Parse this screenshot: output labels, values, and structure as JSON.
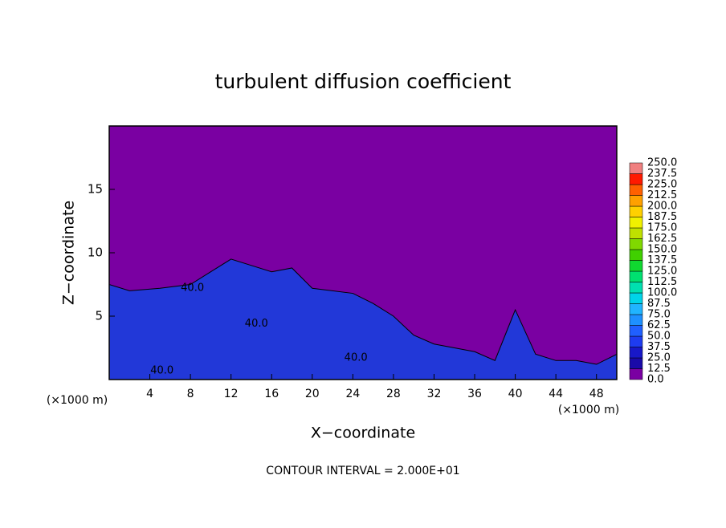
{
  "chart_data": {
    "type": "contour",
    "title": "turbulent diffusion coefficient",
    "xlabel": "X−coordinate",
    "ylabel": "Z−coordinate",
    "x_unit": "(×1000 m)",
    "footer": "CONTOUR INTERVAL = 2.000E+01",
    "xlim": [
      0,
      50
    ],
    "ylim": [
      0,
      20
    ],
    "xticks": [
      4,
      8,
      12,
      16,
      20,
      24,
      28,
      32,
      36,
      40,
      44,
      48
    ],
    "yticks": [
      5,
      10,
      15
    ],
    "background_color": "#7a00a2",
    "layer": {
      "color": "#2238d8",
      "x": [
        0,
        2,
        5,
        8,
        10,
        12,
        14,
        16,
        18,
        20,
        24,
        26,
        28,
        30,
        32,
        34,
        36,
        38,
        40,
        42,
        44,
        46,
        48,
        50
      ],
      "top": [
        7.5,
        7,
        7.2,
        7.5,
        8.5,
        9.5,
        9,
        8.5,
        8.8,
        7.2,
        6.8,
        6,
        5,
        3.5,
        2.8,
        2.5,
        2.2,
        1.5,
        5.5,
        2,
        1.5,
        1.5,
        1.2,
        2
      ]
    },
    "contour_labels": [
      {
        "x": 5.2,
        "y": 0.7,
        "value": 40,
        "label": "40.0"
      },
      {
        "x": 24.3,
        "y": 1.7,
        "value": 40,
        "label": "40.0"
      },
      {
        "x": 8.2,
        "y": 7.2,
        "value": 40,
        "label": "40.0"
      },
      {
        "x": 14.5,
        "y": 4.4,
        "value": 40,
        "label": "40.0"
      }
    ],
    "colorbar": {
      "ticks": [
        {
          "value": 0,
          "label": "0.0"
        },
        12.5,
        {
          "value": 25,
          "label": "25.0"
        },
        37.5,
        {
          "value": 50,
          "label": "50.0"
        },
        62.5,
        {
          "value": 75,
          "label": "75.0"
        },
        87.5,
        {
          "value": 100,
          "label": "100.0"
        },
        112.5,
        {
          "value": 125,
          "label": "125.0"
        },
        137.5,
        {
          "value": 150,
          "label": "150.0"
        },
        162.5,
        {
          "value": 175,
          "label": "175.0"
        },
        187.5,
        {
          "value": 200,
          "label": "200.0"
        },
        212.5,
        {
          "value": 225,
          "label": "225.0"
        },
        237.5,
        {
          "value": 250,
          "label": "250.0"
        }
      ],
      "colors": [
        "#7a00a2",
        "#1a0aa8",
        "#1818c8",
        "#1e3cf0",
        "#2060ff",
        "#1e90ff",
        "#20b4ff",
        "#00d4e8",
        "#00e0b0",
        "#00e070",
        "#10d830",
        "#40d000",
        "#80d800",
        "#c0e000",
        "#f0f000",
        "#ffd000",
        "#ffa000",
        "#ff6000",
        "#ff1a00",
        "#f08080"
      ]
    }
  }
}
